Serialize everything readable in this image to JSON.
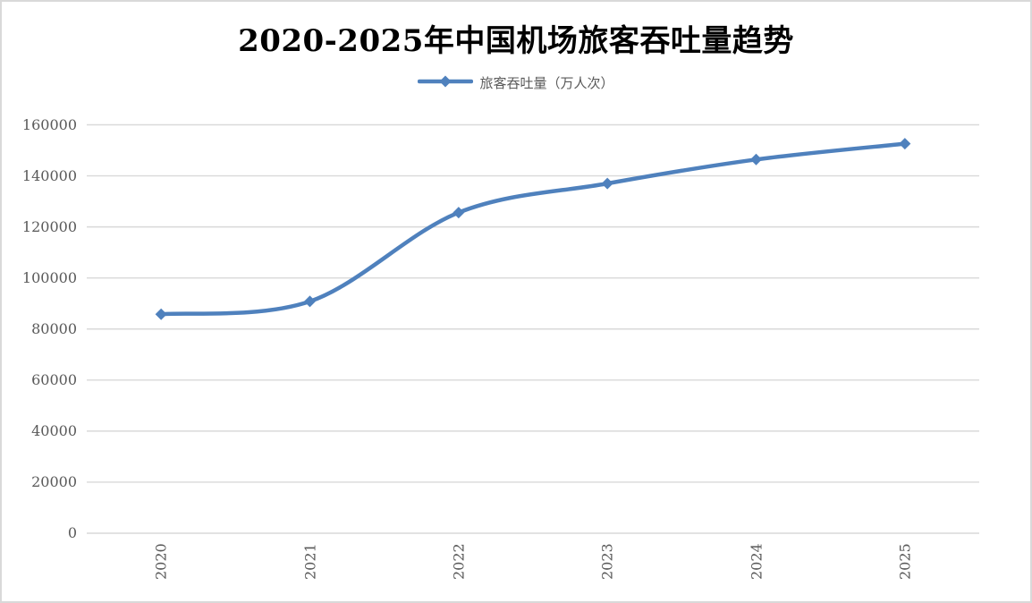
{
  "chart_data": {
    "type": "line",
    "title": "2020-2025年中国机场旅客吞吐量趋势",
    "legend_label": "旅客吞吐量（万人次）",
    "legend_position": "top",
    "categories": [
      "2020",
      "2021",
      "2022",
      "2023",
      "2024",
      "2025"
    ],
    "series": [
      {
        "name": "旅客吞吐量（万人次）",
        "values": [
          85800,
          90800,
          125600,
          137000,
          146400,
          152600
        ]
      }
    ],
    "xlabel": "",
    "ylabel": "",
    "ylim": [
      0,
      160000
    ],
    "ytick_step": 20000,
    "grid": true,
    "smooth_line": true,
    "marker": "diamond",
    "colors": {
      "line": "#4f81bd",
      "marker": "#4f81bd",
      "gridline": "#d9d9d9",
      "axis_line": "#d9d9d9",
      "tick_label": "#595959",
      "title": "#000000",
      "border": "#d9d9d9",
      "background": "#ffffff"
    }
  }
}
